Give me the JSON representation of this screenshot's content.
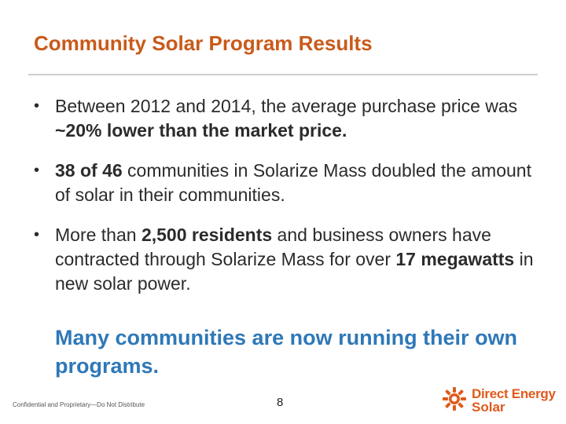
{
  "slide": {
    "title": "Community Solar Program Results",
    "bullets": [
      {
        "parts": [
          {
            "text": "Between 2012 and 2014, the average purchase price was ",
            "bold": false
          },
          {
            "text": "~20% lower than the market price.",
            "bold": true
          }
        ]
      },
      {
        "parts": [
          {
            "text": "38 of 46",
            "bold": true
          },
          {
            "text": " communities in Solarize Mass doubled the amount of solar in their  communities.",
            "bold": false
          }
        ]
      },
      {
        "parts": [
          {
            "text": "More than ",
            "bold": false
          },
          {
            "text": "2,500 residents",
            "bold": true
          },
          {
            "text": " and business owners have contracted through Solarize Mass for over ",
            "bold": false
          },
          {
            "text": "17 megawatts",
            "bold": true
          },
          {
            "text": " in new solar power.",
            "bold": false
          }
        ]
      }
    ],
    "callout": "Many communities are now running their own programs."
  },
  "footer": {
    "note": "Confidential and Proprietary—Do Not Distribute",
    "page_number": "8"
  },
  "logo": {
    "line1": "Direct Energy",
    "line2": "Solar",
    "icon": "sun-logo-icon"
  },
  "colors": {
    "title": "#c95a1a",
    "callout": "#2e78b8",
    "brand": "#e05a1c"
  }
}
